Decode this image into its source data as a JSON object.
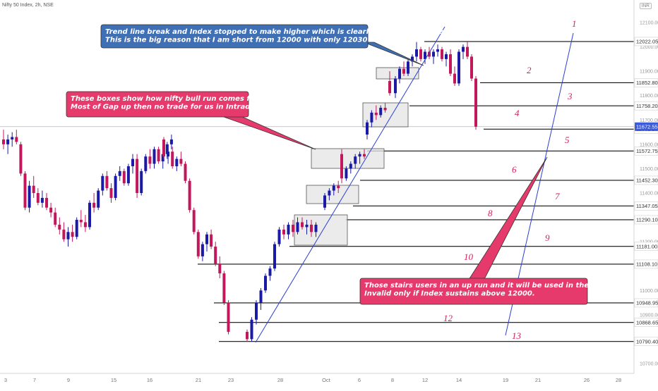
{
  "header": {
    "title": "Nifty 50 Index, 2h, NSE",
    "currency": "INR"
  },
  "colors": {
    "up": "#1a1aa6",
    "down": "#c2185b",
    "trendline": "#2b3fd6",
    "callout_blue": "#3f6fb5",
    "callout_pink": "#e63a6c",
    "stair_num": "#d81b60",
    "last_price_bg": "#3b5bdb"
  },
  "callouts": [
    {
      "id": "trend",
      "lines": [
        "Trend line break and Index stopped to make higher which is clearly a sign of Weakness.",
        "This is the big reason that I am short from 12000 with only 12030 SL"
      ]
    },
    {
      "id": "boxes",
      "lines": [
        "These boxes show how nifty bull run comes from 25th Sep.",
        "Most of Gap up then no trade for us in Intraday"
      ]
    },
    {
      "id": "stairs",
      "lines": [
        "Those stairs users in an up run and it will be used in the downside as well.",
        " Invalid only if Index sustains above 12000."
      ]
    }
  ],
  "last_price": "11672.55",
  "chart_data": {
    "type": "candlestick",
    "title": "Nifty 50 Index, 2h, NSE",
    "y_axis_ticks": [
      12100,
      12000,
      11900,
      11800,
      11700,
      11600,
      11500,
      11400,
      11300,
      11200,
      11100,
      11000,
      10900,
      10800,
      10700
    ],
    "x_axis_ticks": [
      "3",
      "7",
      "9",
      "15",
      "16",
      "21",
      "23",
      "28",
      "Oct",
      "6",
      "8",
      "12",
      "14",
      "19",
      "21",
      "26",
      "28"
    ],
    "levels": [
      {
        "price": 12022.05,
        "label": "12022.05",
        "stair": "13"
      },
      {
        "price": 11852.8,
        "label": "11852.80",
        "stair": "12"
      },
      {
        "price": 11758.2,
        "label": "11758.20",
        "stair": "11"
      },
      {
        "price": 11662.25,
        "label": "11662.25",
        "stair": "10"
      },
      {
        "price": 11572.75,
        "label": "11572.75",
        "stair": "9"
      },
      {
        "price": 11452.3,
        "label": "11452.30",
        "stair": "8"
      },
      {
        "price": 11347.05,
        "label": "11347.05",
        "stair": "7"
      },
      {
        "price": 11290.1,
        "label": "11290.10",
        "stair": "6"
      },
      {
        "price": 11181.0,
        "label": "11181.00",
        "stair": "5"
      },
      {
        "price": 11108.1,
        "label": "11108.10",
        "stair": "4"
      },
      {
        "price": 10948.95,
        "label": "10948.95",
        "stair": "3"
      },
      {
        "price": 10868.65,
        "label": "10868.65",
        "stair": "2"
      },
      {
        "price": 10790.4,
        "label": "10790.40",
        "stair": "1"
      }
    ],
    "candles": [
      [
        11620,
        11660,
        11580,
        11600
      ],
      [
        11600,
        11640,
        11560,
        11620
      ],
      [
        11620,
        11650,
        11590,
        11630
      ],
      [
        11630,
        11660,
        11600,
        11610
      ],
      [
        11600,
        11610,
        11470,
        11480
      ],
      [
        11480,
        11490,
        11330,
        11340
      ],
      [
        11340,
        11450,
        11320,
        11430
      ],
      [
        11430,
        11470,
        11380,
        11400
      ],
      [
        11400,
        11420,
        11350,
        11360
      ],
      [
        11360,
        11410,
        11340,
        11380
      ],
      [
        11380,
        11400,
        11330,
        11340
      ],
      [
        11340,
        11360,
        11300,
        11320
      ],
      [
        11320,
        11340,
        11260,
        11270
      ],
      [
        11270,
        11300,
        11230,
        11250
      ],
      [
        11250,
        11280,
        11200,
        11210
      ],
      [
        11210,
        11260,
        11180,
        11240
      ],
      [
        11240,
        11270,
        11200,
        11220
      ],
      [
        11220,
        11300,
        11210,
        11290
      ],
      [
        11290,
        11330,
        11260,
        11280
      ],
      [
        11280,
        11310,
        11240,
        11260
      ],
      [
        11260,
        11370,
        11250,
        11360
      ],
      [
        11360,
        11400,
        11320,
        11340
      ],
      [
        11340,
        11420,
        11330,
        11410
      ],
      [
        11410,
        11480,
        11390,
        11470
      ],
      [
        11470,
        11490,
        11410,
        11420
      ],
      [
        11420,
        11440,
        11360,
        11380
      ],
      [
        11380,
        11480,
        11370,
        11470
      ],
      [
        11470,
        11510,
        11450,
        11490
      ],
      [
        11490,
        11500,
        11430,
        11440
      ],
      [
        11440,
        11520,
        11430,
        11510
      ],
      [
        11510,
        11560,
        11480,
        11540
      ],
      [
        11540,
        11560,
        11380,
        11400
      ],
      [
        11400,
        11500,
        11390,
        11490
      ],
      [
        11490,
        11560,
        11480,
        11550
      ],
      [
        11550,
        11580,
        11500,
        11520
      ],
      [
        11520,
        11590,
        11500,
        11580
      ],
      [
        11580,
        11590,
        11520,
        11530
      ],
      [
        11530,
        11570,
        11500,
        11560
      ],
      [
        11560,
        11610,
        11540,
        11600
      ],
      [
        11600,
        11640,
        11580,
        11620
      ],
      [
        11620,
        11630,
        11540,
        11550
      ],
      [
        11550,
        11580,
        11520,
        11570
      ],
      [
        11570,
        11590,
        11500,
        11510
      ],
      [
        11510,
        11550,
        11490,
        11540
      ],
      [
        11540,
        11570,
        11510,
        11520
      ],
      [
        11520,
        11530,
        11440,
        11450
      ],
      [
        11450,
        11460,
        11320,
        11330
      ],
      [
        11330,
        11340,
        11230,
        11240
      ],
      [
        11240,
        11250,
        11130,
        11140
      ],
      [
        11140,
        11200,
        11120,
        11190
      ],
      [
        11190,
        11240,
        11160,
        11230
      ],
      [
        11230,
        11250,
        11170,
        11180
      ],
      [
        11180,
        11200,
        11100,
        11110
      ],
      [
        11110,
        11140,
        11050,
        11070
      ],
      [
        11070,
        11080,
        10940,
        10950
      ],
      [
        10950,
        10960,
        10820,
        10830
      ],
      [
        10830,
        10840,
        10790,
        10800
      ],
      [
        10800,
        10890,
        10790,
        10880
      ],
      [
        10880,
        10960,
        10860,
        10950
      ],
      [
        10950,
        11010,
        10920,
        11000
      ],
      [
        11000,
        11070,
        10990,
        11060
      ],
      [
        11060,
        11100,
        11040,
        11090
      ],
      [
        11090,
        11200,
        11080,
        11190
      ],
      [
        11190,
        11260,
        11180,
        11250
      ],
      [
        11250,
        11270,
        11210,
        11230
      ],
      [
        11230,
        11280,
        11210,
        11270
      ],
      [
        11270,
        11290,
        11220,
        11240
      ],
      [
        11240,
        11300,
        11230,
        11280
      ],
      [
        11280,
        11300,
        11250,
        11260
      ],
      [
        11260,
        11290,
        11230,
        11270
      ],
      [
        11270,
        11290,
        11220,
        11240
      ],
      [
        11240,
        11280,
        11220,
        11270
      ],
      [
        11340,
        11400,
        11330,
        11390
      ],
      [
        11390,
        11420,
        11370,
        11410
      ],
      [
        11410,
        11440,
        11390,
        11430
      ],
      [
        11430,
        11450,
        11400,
        11420
      ],
      [
        11560,
        11580,
        11440,
        11460
      ],
      [
        11460,
        11510,
        11450,
        11500
      ],
      [
        11500,
        11530,
        11480,
        11520
      ],
      [
        11520,
        11560,
        11500,
        11550
      ],
      [
        11550,
        11570,
        11520,
        11560
      ],
      [
        11560,
        11580,
        11540,
        11550
      ],
      [
        11640,
        11700,
        11620,
        11690
      ],
      [
        11690,
        11740,
        11670,
        11730
      ],
      [
        11730,
        11760,
        11700,
        11720
      ],
      [
        11720,
        11760,
        11710,
        11750
      ],
      [
        11750,
        11770,
        11730,
        11740
      ],
      [
        11860,
        11900,
        11800,
        11810
      ],
      [
        11810,
        11880,
        11790,
        11870
      ],
      [
        11870,
        11920,
        11850,
        11910
      ],
      [
        11910,
        11940,
        11880,
        11890
      ],
      [
        11890,
        11950,
        11880,
        11940
      ],
      [
        11940,
        11970,
        11920,
        11960
      ],
      [
        11960,
        12020,
        11940,
        11990
      ],
      [
        11990,
        12000,
        11940,
        11950
      ],
      [
        11950,
        11990,
        11930,
        11980
      ],
      [
        11980,
        12000,
        11950,
        11960
      ],
      [
        11960,
        11990,
        11930,
        11980
      ],
      [
        11980,
        12010,
        11960,
        11990
      ],
      [
        11990,
        12000,
        11940,
        11950
      ],
      [
        11950,
        11980,
        11920,
        11970
      ],
      [
        11970,
        11990,
        11880,
        11890
      ],
      [
        11890,
        11920,
        11840,
        11850
      ],
      [
        11850,
        11990,
        11840,
        11980
      ],
      [
        11980,
        12010,
        11950,
        12000
      ],
      [
        12000,
        12020,
        11950,
        11960
      ],
      [
        11960,
        11970,
        11860,
        11870
      ],
      [
        11870,
        11880,
        11660,
        11672.55
      ]
    ]
  }
}
